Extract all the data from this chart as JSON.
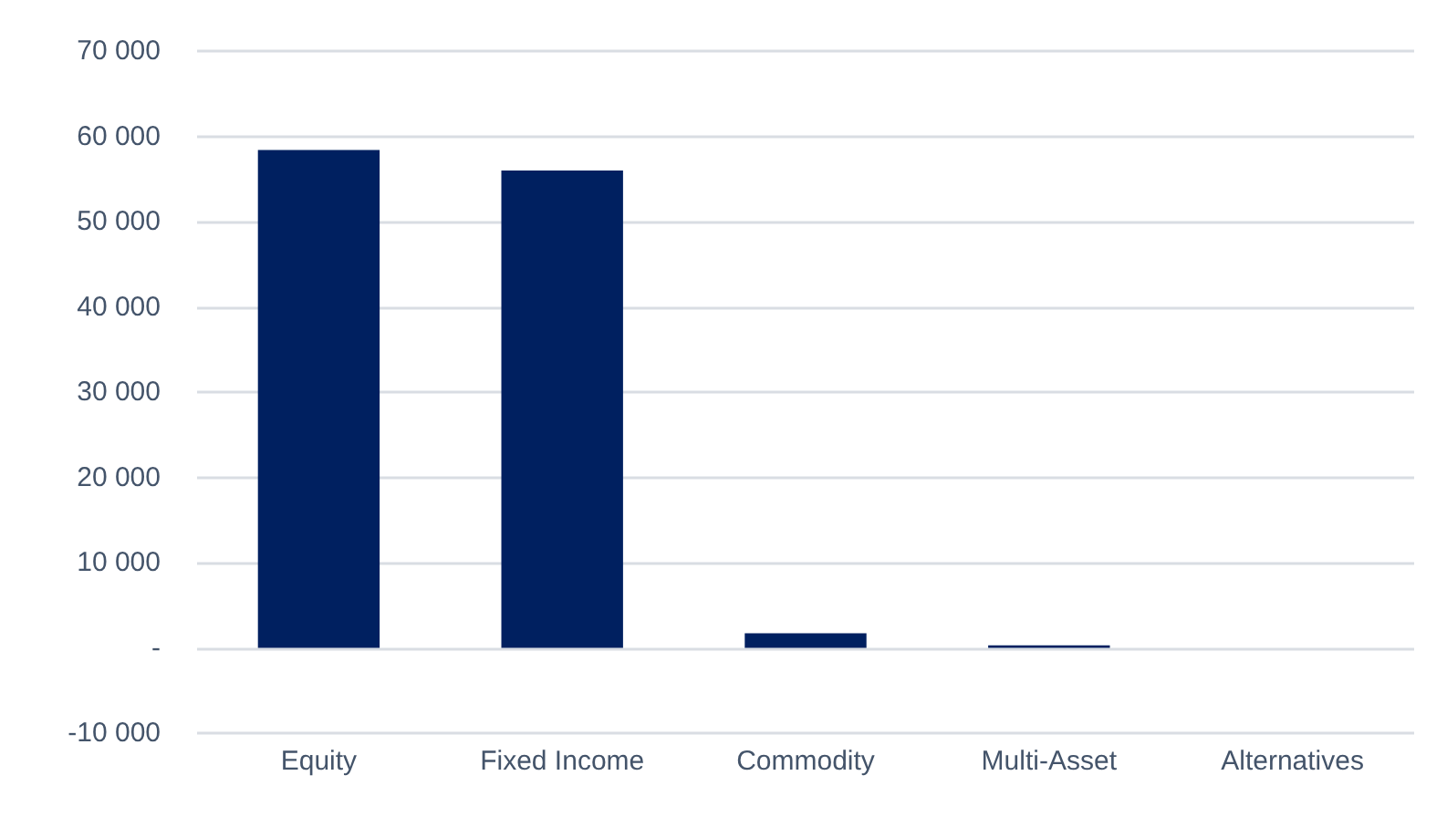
{
  "chart_data": {
    "type": "bar",
    "categories": [
      "Equity",
      "Fixed Income",
      "Commodity",
      "Multi-Asset",
      "Alternatives"
    ],
    "values": [
      58400,
      56000,
      1700,
      300,
      0
    ],
    "color": "#002060",
    "ylim": [
      -10000,
      70000
    ],
    "yticks": [
      {
        "value": -10000,
        "label": "-10 000"
      },
      {
        "value": 0,
        "label": "-"
      },
      {
        "value": 10000,
        "label": "10 000"
      },
      {
        "value": 20000,
        "label": "20 000"
      },
      {
        "value": 30000,
        "label": "30 000"
      },
      {
        "value": 40000,
        "label": "40 000"
      },
      {
        "value": 50000,
        "label": "50 000"
      },
      {
        "value": 60000,
        "label": "60 000"
      },
      {
        "value": 70000,
        "label": "70 000"
      }
    ],
    "grid": "y"
  }
}
